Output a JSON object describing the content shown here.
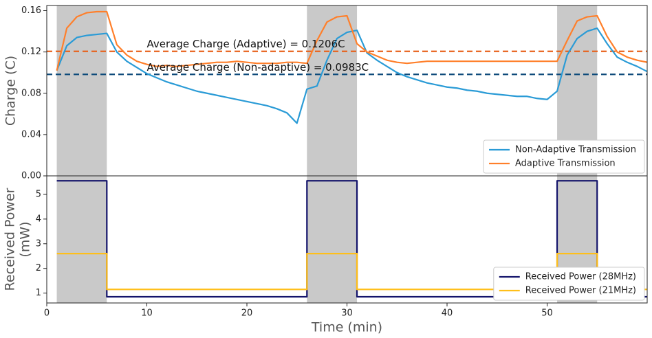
{
  "chart_data": [
    {
      "type": "line",
      "ylabel": [
        "Charge (C)"
      ],
      "xlim": [
        0,
        60
      ],
      "ylim": [
        0,
        0.165
      ],
      "yticks": [
        {
          "value": 0,
          "label": "0.00"
        },
        0.04,
        0.08,
        0.12,
        0.16
      ],
      "shaded_regions": [
        [
          1,
          6
        ],
        [
          26,
          31
        ],
        [
          51,
          55
        ]
      ],
      "legend": "lower right",
      "x": [
        1,
        2,
        3,
        4,
        5,
        6,
        7,
        8,
        9,
        10,
        11,
        12,
        13,
        14,
        15,
        16,
        17,
        18,
        19,
        20,
        21,
        22,
        23,
        24,
        25,
        26,
        27,
        28,
        29,
        30,
        31,
        32,
        33,
        34,
        35,
        36,
        37,
        38,
        39,
        40,
        41,
        42,
        43,
        44,
        45,
        46,
        47,
        48,
        49,
        50,
        51,
        52,
        53,
        54,
        55,
        56,
        57,
        58,
        59,
        60
      ],
      "series": [
        {
          "name": "Non-Adaptive Transmission",
          "color": "#2a9bd6",
          "values": [
            0.102,
            0.126,
            0.134,
            0.136,
            0.137,
            0.138,
            0.12,
            0.111,
            0.105,
            0.099,
            0.095,
            0.091,
            0.088,
            0.085,
            0.082,
            0.08,
            0.078,
            0.076,
            0.074,
            0.072,
            0.07,
            0.068,
            0.065,
            0.061,
            0.051,
            0.084,
            0.087,
            0.112,
            0.133,
            0.139,
            0.141,
            0.119,
            0.112,
            0.106,
            0.1,
            0.096,
            0.093,
            0.09,
            0.088,
            0.086,
            0.085,
            0.083,
            0.082,
            0.08,
            0.079,
            0.078,
            0.077,
            0.077,
            0.075,
            0.074,
            0.082,
            0.117,
            0.133,
            0.14,
            0.143,
            0.128,
            0.115,
            0.11,
            0.106,
            0.101
          ]
        },
        {
          "name": "Adaptive Transmission",
          "color": "#ff7f2a",
          "values": [
            0.102,
            0.143,
            0.154,
            0.158,
            0.159,
            0.159,
            0.127,
            0.117,
            0.111,
            0.108,
            0.106,
            0.107,
            0.106,
            0.107,
            0.108,
            0.109,
            0.11,
            0.11,
            0.111,
            0.11,
            0.109,
            0.109,
            0.109,
            0.11,
            0.11,
            0.109,
            0.131,
            0.149,
            0.154,
            0.155,
            0.128,
            0.12,
            0.116,
            0.112,
            0.11,
            0.109,
            0.11,
            0.111,
            0.111,
            0.111,
            0.111,
            0.111,
            0.111,
            0.111,
            0.111,
            0.111,
            0.111,
            0.111,
            0.111,
            0.111,
            0.111,
            0.131,
            0.15,
            0.154,
            0.155,
            0.135,
            0.12,
            0.115,
            0.112,
            0.11
          ]
        }
      ],
      "hlines": [
        {
          "value": 0.1206,
          "label": "Average Charge (Adaptive) = 0.1206C",
          "color": "#e8621c"
        },
        {
          "value": 0.0983,
          "label": "Average Charge (Non-adaptive) = 0.0983C",
          "color": "#0d4a7a"
        }
      ]
    },
    {
      "type": "line",
      "ylabel": [
        "Received Power",
        "(mW)"
      ],
      "xlabel": "Time (min)",
      "xlim": [
        0,
        60
      ],
      "xticks": [
        0,
        10,
        20,
        30,
        40,
        50
      ],
      "ylim": [
        0.6,
        5.75
      ],
      "yticks": [
        1,
        2,
        3,
        4,
        5
      ],
      "shaded_regions": [
        [
          1,
          6
        ],
        [
          26,
          31
        ],
        [
          51,
          55
        ]
      ],
      "legend": "lower right",
      "x": [
        1,
        6,
        6,
        26,
        26,
        31,
        31,
        51,
        51,
        55,
        55,
        60
      ],
      "series": [
        {
          "name": "Received Power (28MHz)",
          "color": "#14146b",
          "values": [
            5.55,
            5.55,
            0.85,
            0.85,
            5.55,
            5.55,
            0.85,
            0.85,
            5.55,
            5.55,
            0.85,
            0.85
          ]
        },
        {
          "name": "Received Power (21MHz)",
          "color": "#ffbf1a",
          "values": [
            2.6,
            2.6,
            1.15,
            1.15,
            2.6,
            2.6,
            1.15,
            1.15,
            2.6,
            2.6,
            1.15,
            1.15
          ]
        }
      ]
    }
  ]
}
